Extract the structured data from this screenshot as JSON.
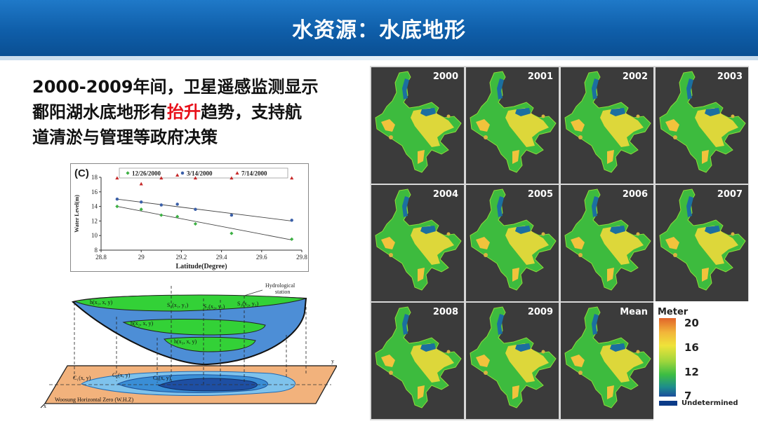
{
  "slide": {
    "title": "水资源：水底地形",
    "desc_line1": "2000-2009年间，卫星遥感监测显示",
    "desc_line2_a": "鄱阳湖水底地形有",
    "desc_line2_highlight": "抬升",
    "desc_line2_b": "趋势，支持航",
    "desc_line3": "道清淤与管理等政府决策",
    "highlight_color": "#e8101a"
  },
  "chart_data": {
    "type": "scatter",
    "panel_label": "(C)",
    "xlabel": "Latitude(Degree)",
    "ylabel": "Water Level(m)",
    "xlim": [
      28.8,
      29.8
    ],
    "ylim": [
      8,
      18
    ],
    "x_ticks": [
      "28.8",
      "29",
      "29.2",
      "29.4",
      "29.6",
      "29.8"
    ],
    "y_ticks": [
      "8",
      "10",
      "12",
      "14",
      "16",
      "18"
    ],
    "legend_position": "top",
    "series": [
      {
        "name": "12/26/2000",
        "color": "#3cb043",
        "marker": "diamond",
        "points": [
          [
            28.88,
            14.0
          ],
          [
            29.0,
            13.6
          ],
          [
            29.1,
            12.8
          ],
          [
            29.18,
            12.6
          ],
          [
            29.27,
            11.6
          ],
          [
            29.45,
            10.3
          ],
          [
            29.75,
            9.5
          ]
        ],
        "trend": [
          [
            28.88,
            14.0
          ],
          [
            29.75,
            9.4
          ]
        ]
      },
      {
        "name": "3/14/2000",
        "color": "#3a5fa8",
        "marker": "circle",
        "points": [
          [
            28.88,
            15.0
          ],
          [
            29.0,
            14.6
          ],
          [
            29.1,
            14.2
          ],
          [
            29.18,
            14.3
          ],
          [
            29.27,
            13.6
          ],
          [
            29.45,
            12.8
          ],
          [
            29.75,
            12.1
          ]
        ],
        "trend": [
          [
            28.88,
            15.0
          ],
          [
            29.75,
            12.0
          ]
        ]
      },
      {
        "name": "7/14/2000",
        "color": "#c62828",
        "marker": "triangle",
        "points": [
          [
            28.88,
            17.9
          ],
          [
            29.0,
            17.1
          ],
          [
            29.1,
            17.9
          ],
          [
            29.18,
            18.3
          ],
          [
            29.27,
            17.9
          ],
          [
            29.45,
            17.9
          ],
          [
            29.75,
            17.9
          ]
        ]
      }
    ]
  },
  "diagram": {
    "hydro_label": "Hydrological",
    "station_label": "station",
    "h1": "h(x₁, x, y)",
    "h2": "h(x₂, x, y)",
    "h3": "h(x₃, x, y)",
    "s1": "S₁(x₁, y₁)",
    "s2": "S₂(x₂, y₂)",
    "s3": "S₃(x₃, y₃)",
    "c1": "C₁(x, y)",
    "c2": "C₂(x, y)",
    "c3": "C₃(x, y)",
    "axis_x": "x",
    "axis_y": "y",
    "baseline": "Woosung Horizontal Zero (W.H.Z)"
  },
  "maps": {
    "tiles": [
      {
        "year": "2000"
      },
      {
        "year": "2001"
      },
      {
        "year": "2002"
      },
      {
        "year": "2003"
      },
      {
        "year": "2004"
      },
      {
        "year": "2005"
      },
      {
        "year": "2006"
      },
      {
        "year": "2007"
      },
      {
        "year": "2008"
      },
      {
        "year": "2009"
      },
      {
        "year": "Mean"
      }
    ],
    "legend": {
      "title": "Meter",
      "max": "20",
      "v16": "16",
      "v12": "12",
      "min": "7",
      "undetermined": "Undetermined"
    }
  }
}
